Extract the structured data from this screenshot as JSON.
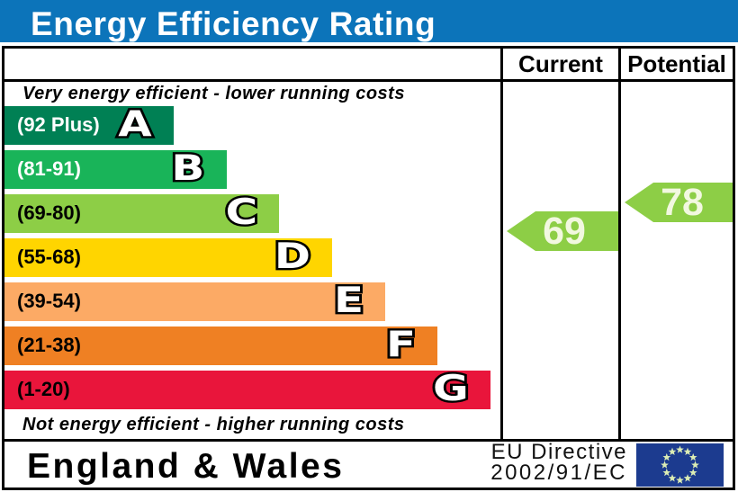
{
  "title": "Energy Efficiency Rating",
  "header": {
    "current_label": "Current",
    "potential_label": "Potential"
  },
  "notes": {
    "top": "Very energy efficient - lower running costs",
    "bottom": "Not energy efficient - higher running costs"
  },
  "footer": {
    "region": "England & Wales",
    "directive_line1": "EU Directive",
    "directive_line2": "2002/91/EC",
    "flag": "eu-flag"
  },
  "colors": {
    "title_bar": "#0c74ba",
    "border": "#000000",
    "arrow": "#8dce46",
    "flag_blue": "#1c3b8f",
    "flag_star": "#dcedb4"
  },
  "chart_data": {
    "type": "epc_energy_efficiency_rating_bar",
    "title": "Energy Efficiency Rating",
    "columns": [
      "Current",
      "Potential"
    ],
    "bands": [
      {
        "letter": "A",
        "label": "(92 Plus)",
        "min": 92,
        "max": 100,
        "color": "#008054",
        "label_color": "#ffffff"
      },
      {
        "letter": "B",
        "label": "(81-91)",
        "min": 81,
        "max": 91,
        "color": "#19b459",
        "label_color": "#ffffff"
      },
      {
        "letter": "C",
        "label": "(69-80)",
        "min": 69,
        "max": 80,
        "color": "#8dce46",
        "label_color": "#000000"
      },
      {
        "letter": "D",
        "label": "(55-68)",
        "min": 55,
        "max": 68,
        "color": "#ffd500",
        "label_color": "#000000"
      },
      {
        "letter": "E",
        "label": "(39-54)",
        "min": 39,
        "max": 54,
        "color": "#fcaa65",
        "label_color": "#000000"
      },
      {
        "letter": "F",
        "label": "(21-38)",
        "min": 21,
        "max": 38,
        "color": "#ef8023",
        "label_color": "#000000"
      },
      {
        "letter": "G",
        "label": "(1-20)",
        "min": 1,
        "max": 20,
        "color": "#e9153b",
        "label_color": "#000000"
      }
    ],
    "current": {
      "value": 69,
      "band": "C",
      "arrow_color": "#8dce46"
    },
    "potential": {
      "value": 78,
      "band": "C",
      "arrow_color": "#8dce46"
    }
  }
}
